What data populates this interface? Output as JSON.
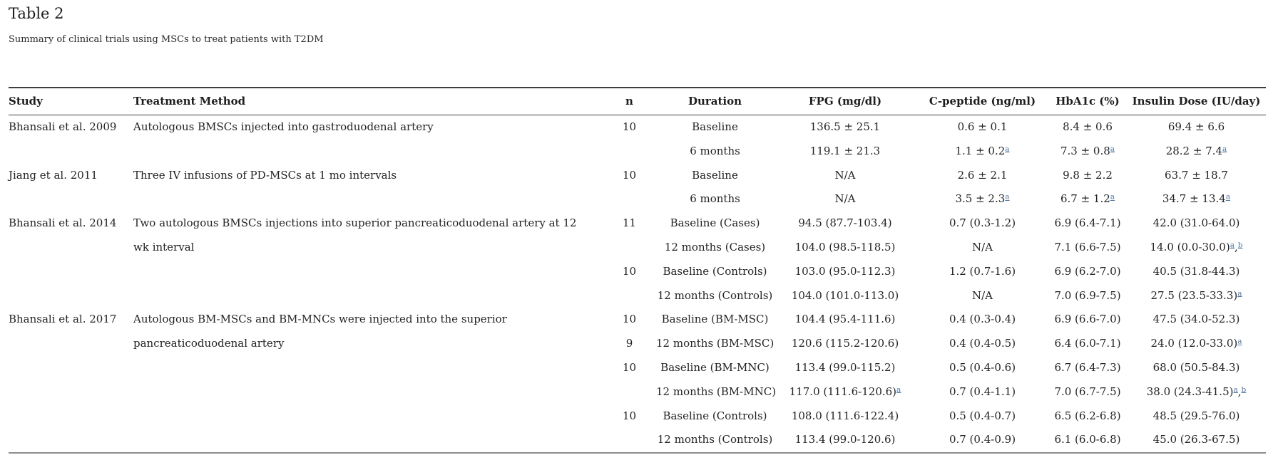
{
  "page": {
    "title": "Table 2",
    "subtitle": "Summary of clinical trials using MSCs to treat patients with T2DM"
  },
  "colors": {
    "text": "#232323",
    "footnote_link_blue": "#4d76a5",
    "rule_dark": "#3c3c3c",
    "rule_light": "#8e8e8e"
  },
  "table": {
    "columns": [
      {
        "key": "study",
        "label": "Study",
        "align": "left"
      },
      {
        "key": "treatment",
        "label": "Treatment Method",
        "align": "left"
      },
      {
        "key": "n",
        "label": "n",
        "align": "center"
      },
      {
        "key": "duration",
        "label": "Duration",
        "align": "center"
      },
      {
        "key": "fpg",
        "label": "FPG (mg/dl)",
        "align": "center"
      },
      {
        "key": "c_peptide",
        "label": "C-peptide (ng/ml)",
        "align": "center"
      },
      {
        "key": "hba1c",
        "label": "HbA1c (%)",
        "align": "center"
      },
      {
        "key": "insulin",
        "label": "Insulin Dose (IU/day)",
        "align": "center"
      }
    ],
    "groups": [
      {
        "study": "Bhansali et al. 2009",
        "treatment": "Autologous BMSCs injected into gastroduodenal artery",
        "rows": [
          {
            "n": "10",
            "duration": "Baseline",
            "fpg": "136.5 ± 25.1",
            "c_peptide": "0.6 ± 0.1",
            "hba1c": "8.4 ± 0.6",
            "insulin": "69.4 ± 6.6"
          },
          {
            "n": "",
            "duration": "6 months",
            "fpg": "119.1 ± 21.3",
            "c_peptide": {
              "v": "1.1 ± 0.2",
              "sup": [
                "a"
              ]
            },
            "hba1c": {
              "v": "7.3 ± 0.8",
              "sup": [
                "a"
              ]
            },
            "insulin": {
              "v": "28.2 ± 7.4",
              "sup": [
                "a"
              ]
            }
          }
        ]
      },
      {
        "study": "Jiang et al. 2011",
        "treatment": "Three IV infusions of PD-MSCs at 1 mo intervals",
        "rows": [
          {
            "n": "10",
            "duration": "Baseline",
            "fpg": "N/A",
            "c_peptide": "2.6 ± 2.1",
            "hba1c": "9.8 ± 2.2",
            "insulin": "63.7 ± 18.7"
          },
          {
            "n": "",
            "duration": "6 months",
            "fpg": "N/A",
            "c_peptide": {
              "v": "3.5 ± 2.3",
              "sup": [
                "a"
              ]
            },
            "hba1c": {
              "v": "6.7 ± 1.2",
              "sup": [
                "a"
              ]
            },
            "insulin": {
              "v": "34.7 ± 13.4",
              "sup": [
                "a"
              ]
            }
          }
        ]
      },
      {
        "study": "Bhansali et al. 2014",
        "treatment": "Two autologous BMSCs injections into superior pancreaticoduodenal artery at 12 wk interval",
        "rows": [
          {
            "n": "11",
            "duration": "Baseline (Cases)",
            "fpg": "94.5 (87.7-103.4)",
            "c_peptide": "0.7 (0.3-1.2)",
            "hba1c": "6.9 (6.4-7.1)",
            "insulin": "42.0 (31.0-64.0)"
          },
          {
            "n": "",
            "duration": "12 months (Cases)",
            "fpg": "104.0 (98.5-118.5)",
            "c_peptide": "N/A",
            "hba1c": "7.1 (6.6-7.5)",
            "insulin": {
              "v": "14.0 (0.0-30.0)",
              "sup": [
                "a",
                "b"
              ]
            }
          },
          {
            "n": "10",
            "duration": "Baseline (Controls)",
            "fpg": "103.0 (95.0-112.3)",
            "c_peptide": "1.2 (0.7-1.6)",
            "hba1c": "6.9 (6.2-7.0)",
            "insulin": "40.5 (31.8-44.3)"
          },
          {
            "n": "",
            "duration": "12 months (Controls)",
            "fpg": "104.0 (101.0-113.0)",
            "c_peptide": "N/A",
            "hba1c": "7.0 (6.9-7.5)",
            "insulin": {
              "v": "27.5 (23.5-33.3)",
              "sup": [
                "a"
              ]
            }
          }
        ]
      },
      {
        "study": "Bhansali et al. 2017",
        "treatment": "Autologous BM-MSCs and BM-MNCs were injected into the superior pancreaticoduodenal artery",
        "rows": [
          {
            "n": "10",
            "duration": "Baseline (BM-MSC)",
            "fpg": "104.4 (95.4-111.6)",
            "c_peptide": "0.4 (0.3-0.4)",
            "hba1c": "6.9 (6.6-7.0)",
            "insulin": "47.5 (34.0-52.3)"
          },
          {
            "n": "9",
            "duration": "12 months (BM-MSC)",
            "fpg": "120.6 (115.2-120.6)",
            "c_peptide": "0.4 (0.4-0.5)",
            "hba1c": "6.4 (6.0-7.1)",
            "insulin": {
              "v": "24.0 (12.0-33.0)",
              "sup": [
                "a"
              ]
            }
          },
          {
            "n": "10",
            "duration": "Baseline (BM-MNC)",
            "fpg": "113.4 (99.0-115.2)",
            "c_peptide": "0.5 (0.4-0.6)",
            "hba1c": "6.7 (6.4-7.3)",
            "insulin": "68.0 (50.5-84.3)"
          },
          {
            "n": "",
            "duration": "12 months (BM-MNC)",
            "fpg": {
              "v": "117.0 (111.6-120.6)",
              "sup": [
                "a"
              ]
            },
            "c_peptide": "0.7 (0.4-1.1)",
            "hba1c": "7.0 (6.7-7.5)",
            "insulin": {
              "v": "38.0 (24.3-41.5)",
              "sup": [
                "a",
                "b"
              ]
            }
          },
          {
            "n": "10",
            "duration": "Baseline (Controls)",
            "fpg": "108.0 (111.6-122.4)",
            "c_peptide": "0.5 (0.4-0.7)",
            "hba1c": "6.5 (6.2-6.8)",
            "insulin": "48.5 (29.5-76.0)"
          },
          {
            "n": "",
            "duration": "12 months (Controls)",
            "fpg": "113.4 (99.0-120.6)",
            "c_peptide": "0.7 (0.4-0.9)",
            "hba1c": "6.1 (6.0-6.8)",
            "insulin": "45.0 (26.3-67.5)"
          }
        ]
      }
    ]
  }
}
